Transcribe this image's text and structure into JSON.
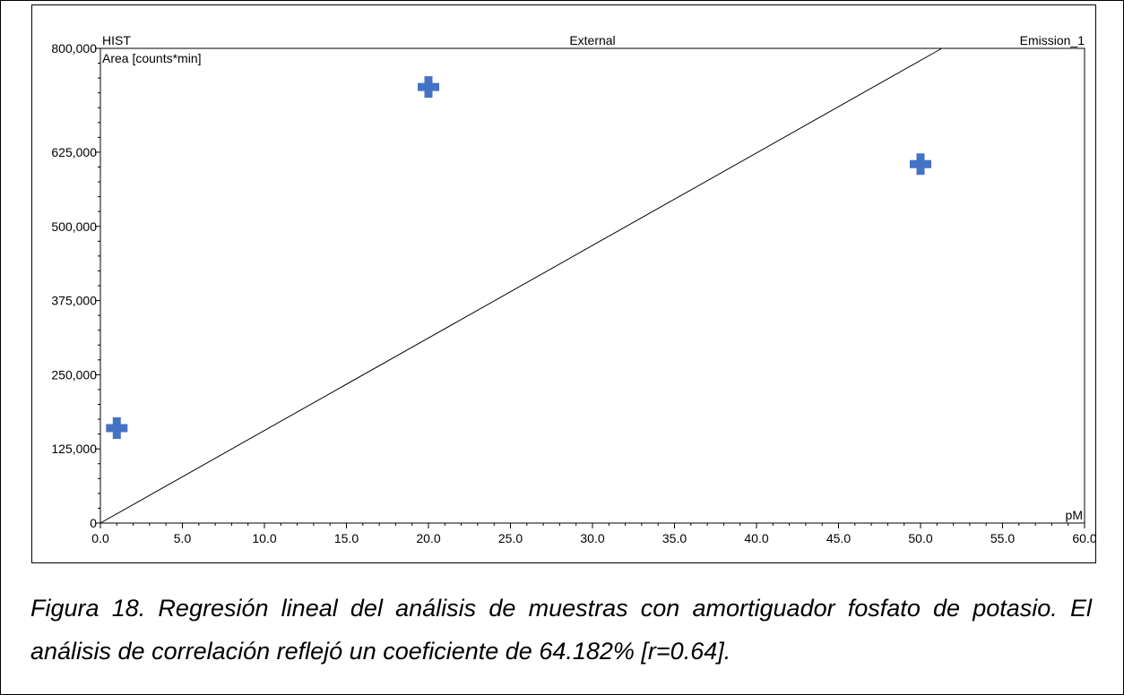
{
  "chart_data": {
    "type": "scatter",
    "top_left_label": "HIST",
    "top_center_label": "External",
    "top_right_label": "Emission_1",
    "ylabel": "Area  [counts*min]",
    "xlabel": "pM",
    "xlim": [
      0,
      60
    ],
    "ylim": [
      0,
      800000
    ],
    "x_ticks": [
      0,
      5,
      10,
      15,
      20,
      25,
      30,
      35,
      40,
      45,
      50,
      55,
      60
    ],
    "x_tick_labels": [
      "0.0",
      "5.0",
      "10.0",
      "15.0",
      "20.0",
      "25.0",
      "30.0",
      "35.0",
      "40.0",
      "45.0",
      "50.0",
      "55.0",
      "60.0"
    ],
    "y_ticks": [
      0,
      125000,
      250000,
      375000,
      500000,
      625000,
      800000
    ],
    "y_tick_labels": [
      "0",
      "125,000",
      "250,000",
      "375,000",
      "500,000",
      "625,000",
      "800,000"
    ],
    "series": [
      {
        "x": [
          1,
          20,
          50
        ],
        "y": [
          160000,
          735000,
          605000
        ],
        "marker": "plus",
        "color": "#4472c4"
      }
    ],
    "regression_line": {
      "x": [
        0,
        51.3
      ],
      "y": [
        0,
        800000
      ],
      "color": "#000000"
    },
    "grid": false
  },
  "caption": "Figura 18. Regresión lineal del análisis de muestras con amortiguador fosfato de potasio. El análisis de correlación reflejó un coeficiente de 64.182% [r=0.64]."
}
